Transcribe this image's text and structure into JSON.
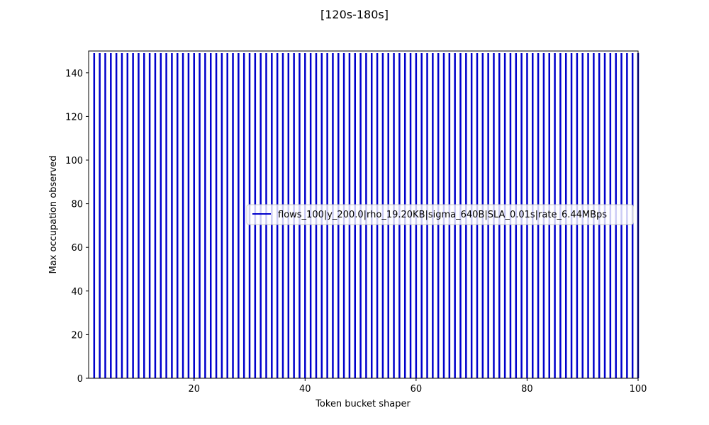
{
  "chart_data": {
    "type": "bar",
    "title": "[120s-180s]",
    "xlabel": "Token bucket shaper",
    "ylabel": "Max occupation observed",
    "xlim": [
      1,
      100
    ],
    "ylim": [
      0,
      150
    ],
    "x_ticks": [
      20,
      40,
      60,
      80,
      100
    ],
    "y_ticks": [
      0,
      20,
      40,
      60,
      80,
      100,
      120,
      140
    ],
    "grid": false,
    "legend_position": "center-right",
    "series": [
      {
        "name": "flows_100|y_200.0|rho_19.20KB|sigma_640B|SLA_0.01s|rate_6.44MBps",
        "color": "#0000cc",
        "x_start": 2,
        "x_end": 100,
        "x_step": 1,
        "value": 150
      }
    ]
  }
}
